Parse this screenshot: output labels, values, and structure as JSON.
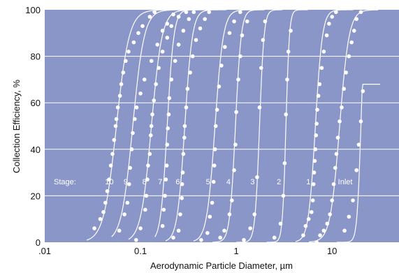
{
  "colors": {
    "plot_background": "#8b96c8",
    "curve": "#ffffff",
    "gridline": "#ffffff",
    "text": "#111111"
  },
  "chart_data": {
    "type": "line",
    "xscale": "log",
    "xlim": [
      0.01,
      50
    ],
    "ylim": [
      0,
      100
    ],
    "xlabel": "Aerodynamic Particle Diameter, µm",
    "ylabel": "Collection Efficiency, %",
    "x_ticks": [
      {
        "value": 0.01,
        "label": ".01"
      },
      {
        "value": 0.1,
        "label": "0.1"
      },
      {
        "value": 1,
        "label": "1"
      },
      {
        "value": 10,
        "label": "10"
      }
    ],
    "y_ticks": [
      0,
      20,
      40,
      60,
      80,
      100
    ],
    "grid": "horizontal",
    "stage_prefix": "Stage:",
    "series": [
      {
        "name": "10",
        "d50": 0.056,
        "points": [
          [
            0.033,
            6
          ],
          [
            0.038,
            10
          ],
          [
            0.041,
            13
          ],
          [
            0.043,
            17
          ],
          [
            0.045,
            22
          ],
          [
            0.047,
            27
          ],
          [
            0.049,
            33
          ],
          [
            0.051,
            38
          ],
          [
            0.053,
            44
          ],
          [
            0.055,
            50
          ],
          [
            0.056,
            53
          ],
          [
            0.058,
            58
          ],
          [
            0.061,
            63
          ],
          [
            0.063,
            68
          ],
          [
            0.066,
            73
          ],
          [
            0.07,
            78
          ],
          [
            0.075,
            82
          ],
          [
            0.085,
            86
          ],
          [
            0.095,
            90
          ],
          [
            0.105,
            93
          ],
          [
            0.125,
            97
          ],
          [
            0.14,
            99
          ]
        ]
      },
      {
        "name": "9",
        "d50": 0.083,
        "points": [
          [
            0.06,
            5
          ],
          [
            0.068,
            12
          ],
          [
            0.073,
            17
          ],
          [
            0.076,
            25
          ],
          [
            0.078,
            32
          ],
          [
            0.081,
            40
          ],
          [
            0.083,
            47
          ],
          [
            0.087,
            53
          ],
          [
            0.091,
            58
          ],
          [
            0.1,
            64
          ],
          [
            0.11,
            70
          ],
          [
            0.13,
            78
          ],
          [
            0.15,
            85
          ],
          [
            0.17,
            91
          ],
          [
            0.19,
            94
          ],
          [
            0.22,
            98
          ]
        ]
      },
      {
        "name": "8",
        "d50": 0.13,
        "points": [
          [
            0.09,
            1
          ],
          [
            0.1,
            6
          ],
          [
            0.112,
            14
          ],
          [
            0.115,
            20
          ],
          [
            0.118,
            27
          ],
          [
            0.12,
            33
          ],
          [
            0.125,
            38
          ],
          [
            0.128,
            46
          ],
          [
            0.13,
            50
          ],
          [
            0.133,
            55
          ],
          [
            0.138,
            61
          ],
          [
            0.145,
            68
          ],
          [
            0.155,
            75
          ],
          [
            0.17,
            82
          ],
          [
            0.19,
            88
          ],
          [
            0.21,
            93
          ],
          [
            0.25,
            97
          ],
          [
            0.3,
            99
          ]
        ]
      },
      {
        "name": "7",
        "d50": 0.19,
        "points": [
          [
            0.17,
            7
          ],
          [
            0.175,
            14
          ],
          [
            0.18,
            20
          ],
          [
            0.184,
            27
          ],
          [
            0.188,
            33
          ],
          [
            0.19,
            42
          ],
          [
            0.193,
            49
          ],
          [
            0.197,
            55
          ],
          [
            0.2,
            62
          ],
          [
            0.21,
            70
          ],
          [
            0.23,
            78
          ],
          [
            0.25,
            85
          ],
          [
            0.28,
            91
          ],
          [
            0.32,
            96
          ],
          [
            0.36,
            99
          ]
        ]
      },
      {
        "name": "6",
        "d50": 0.29,
        "points": [
          [
            0.22,
            2
          ],
          [
            0.25,
            5
          ],
          [
            0.26,
            12
          ],
          [
            0.27,
            19
          ],
          [
            0.272,
            25
          ],
          [
            0.276,
            30
          ],
          [
            0.28,
            38
          ],
          [
            0.287,
            45
          ],
          [
            0.29,
            50
          ],
          [
            0.3,
            58
          ],
          [
            0.31,
            66
          ],
          [
            0.33,
            73
          ],
          [
            0.35,
            80
          ],
          [
            0.38,
            87
          ],
          [
            0.42,
            92
          ],
          [
            0.47,
            96
          ],
          [
            0.52,
            99
          ]
        ]
      },
      {
        "name": "5",
        "d50": 0.6,
        "points": [
          [
            0.43,
            1
          ],
          [
            0.5,
            4
          ],
          [
            0.53,
            11
          ],
          [
            0.56,
            17
          ],
          [
            0.58,
            26
          ],
          [
            0.59,
            33
          ],
          [
            0.6,
            40
          ],
          [
            0.61,
            50
          ],
          [
            0.63,
            57
          ],
          [
            0.66,
            67
          ],
          [
            0.7,
            76
          ],
          [
            0.76,
            84
          ],
          [
            0.85,
            90
          ],
          [
            0.95,
            95
          ],
          [
            1.1,
            99
          ]
        ]
      },
      {
        "name": "4",
        "d50": 0.98,
        "points": [
          [
            0.68,
            2
          ],
          [
            0.75,
            5
          ],
          [
            0.85,
            12
          ],
          [
            0.9,
            18
          ],
          [
            0.95,
            31
          ],
          [
            0.98,
            42
          ],
          [
            1.0,
            56
          ],
          [
            1.05,
            70
          ],
          [
            1.1,
            80
          ],
          [
            1.15,
            89
          ],
          [
            1.3,
            95
          ]
        ]
      },
      {
        "name": "3",
        "d50": 1.75,
        "points": [
          [
            1.2,
            1
          ],
          [
            1.4,
            6
          ],
          [
            1.55,
            12
          ],
          [
            1.65,
            28
          ],
          [
            1.75,
            58
          ],
          [
            1.82,
            75
          ],
          [
            1.9,
            87
          ],
          [
            2.0,
            95
          ]
        ]
      },
      {
        "name": "2",
        "d50": 3.3,
        "points": [
          [
            2.5,
            2
          ],
          [
            2.9,
            8
          ],
          [
            3.1,
            20
          ],
          [
            3.2,
            34
          ],
          [
            3.3,
            55
          ],
          [
            3.4,
            70
          ],
          [
            3.5,
            82
          ],
          [
            3.7,
            91
          ]
        ]
      },
      {
        "name": "1",
        "d50": 6.7,
        "points": [
          [
            5.0,
            3
          ],
          [
            5.3,
            7
          ],
          [
            5.7,
            10
          ],
          [
            6.1,
            13
          ],
          [
            6.3,
            18
          ],
          [
            6.4,
            25
          ],
          [
            6.5,
            30
          ],
          [
            6.6,
            35
          ],
          [
            6.7,
            40
          ],
          [
            6.8,
            46
          ],
          [
            6.9,
            51
          ],
          [
            7.0,
            57
          ],
          [
            7.2,
            63
          ],
          [
            7.4,
            68
          ],
          [
            7.8,
            75
          ],
          [
            8.2,
            82
          ],
          [
            8.8,
            89
          ],
          [
            9.3,
            94
          ],
          [
            10.0,
            97
          ],
          [
            11.0,
            99
          ]
        ]
      },
      {
        "name": "Inlet",
        "d50": 12,
        "points": [
          [
            6.9,
            0
          ],
          [
            7.5,
            3
          ],
          [
            8.2,
            5
          ],
          [
            8.9,
            8
          ],
          [
            9.5,
            12
          ],
          [
            10.0,
            18
          ],
          [
            10.4,
            25
          ],
          [
            10.8,
            32
          ],
          [
            11.1,
            38
          ],
          [
            11.5,
            45
          ],
          [
            12.0,
            52
          ],
          [
            12.6,
            58
          ],
          [
            13.3,
            66
          ],
          [
            14.0,
            73
          ],
          [
            15.0,
            80
          ],
          [
            16.0,
            86
          ],
          [
            17.0,
            91
          ],
          [
            18.0,
            96
          ],
          [
            20.0,
            99
          ]
        ]
      },
      {
        "name": "",
        "d50": 20,
        "points": [
          [
            13.5,
            5
          ],
          [
            15.0,
            11
          ],
          [
            16.5,
            18
          ],
          [
            18.0,
            31
          ],
          [
            19.0,
            42
          ],
          [
            20.0,
            52
          ],
          [
            21.0,
            65
          ]
        ]
      }
    ]
  }
}
